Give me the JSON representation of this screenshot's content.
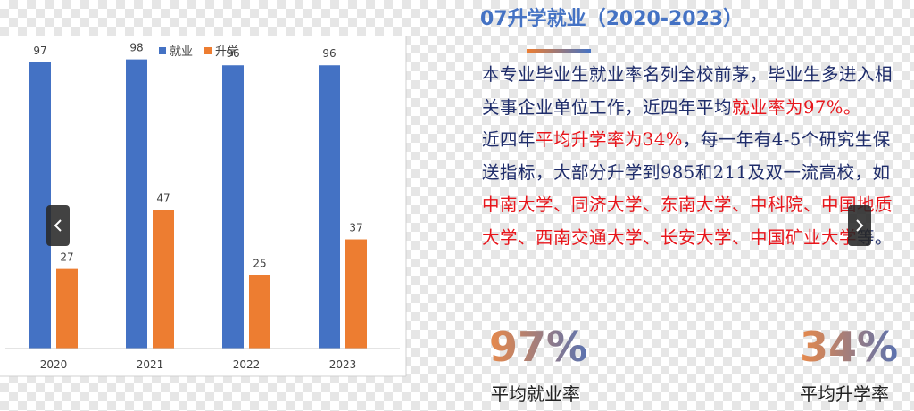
{
  "section": {
    "title": "07升学就业（2020-2023）"
  },
  "description": {
    "line1_a": "本专业毕业生就业率名列全校前茅，毕业生多进入相关事企业单位工作，近四年平均",
    "line1_b": "就业率为97%。",
    "line2_a": "近四年",
    "line2_b": "平均升学率为34%",
    "line2_c": "，每一年有4-5个研究生保送指标，大部分升学到985和211及双一流高校，如",
    "line2_d": "中南大学、同济大学、东南大学、中科院、中国地质大学、西南交通大学、长安大学、中国矿业大学",
    "line2_e": "等。"
  },
  "stats": {
    "employment": {
      "value": "97%",
      "label": "平均就业率"
    },
    "further_study": {
      "value": "34%",
      "label": "平均升学率"
    }
  },
  "colors": {
    "employment": "#4472C4",
    "further_study": "#ED7D31",
    "highlight": "#e8151b",
    "text": "#1f2d6b"
  },
  "nav": {
    "prev_icon": "chevron-left-icon",
    "next_icon": "chevron-right-icon"
  },
  "chart_data": {
    "type": "bar",
    "categories": [
      "2020",
      "2021",
      "2022",
      "2023"
    ],
    "series": [
      {
        "name": "就业",
        "values": [
          97,
          98,
          96,
          96
        ]
      },
      {
        "name": "升学",
        "values": [
          27,
          47,
          25,
          37
        ]
      }
    ],
    "ylim": [
      0,
      100
    ],
    "legend": "top",
    "grid": false,
    "data_labels": true
  }
}
